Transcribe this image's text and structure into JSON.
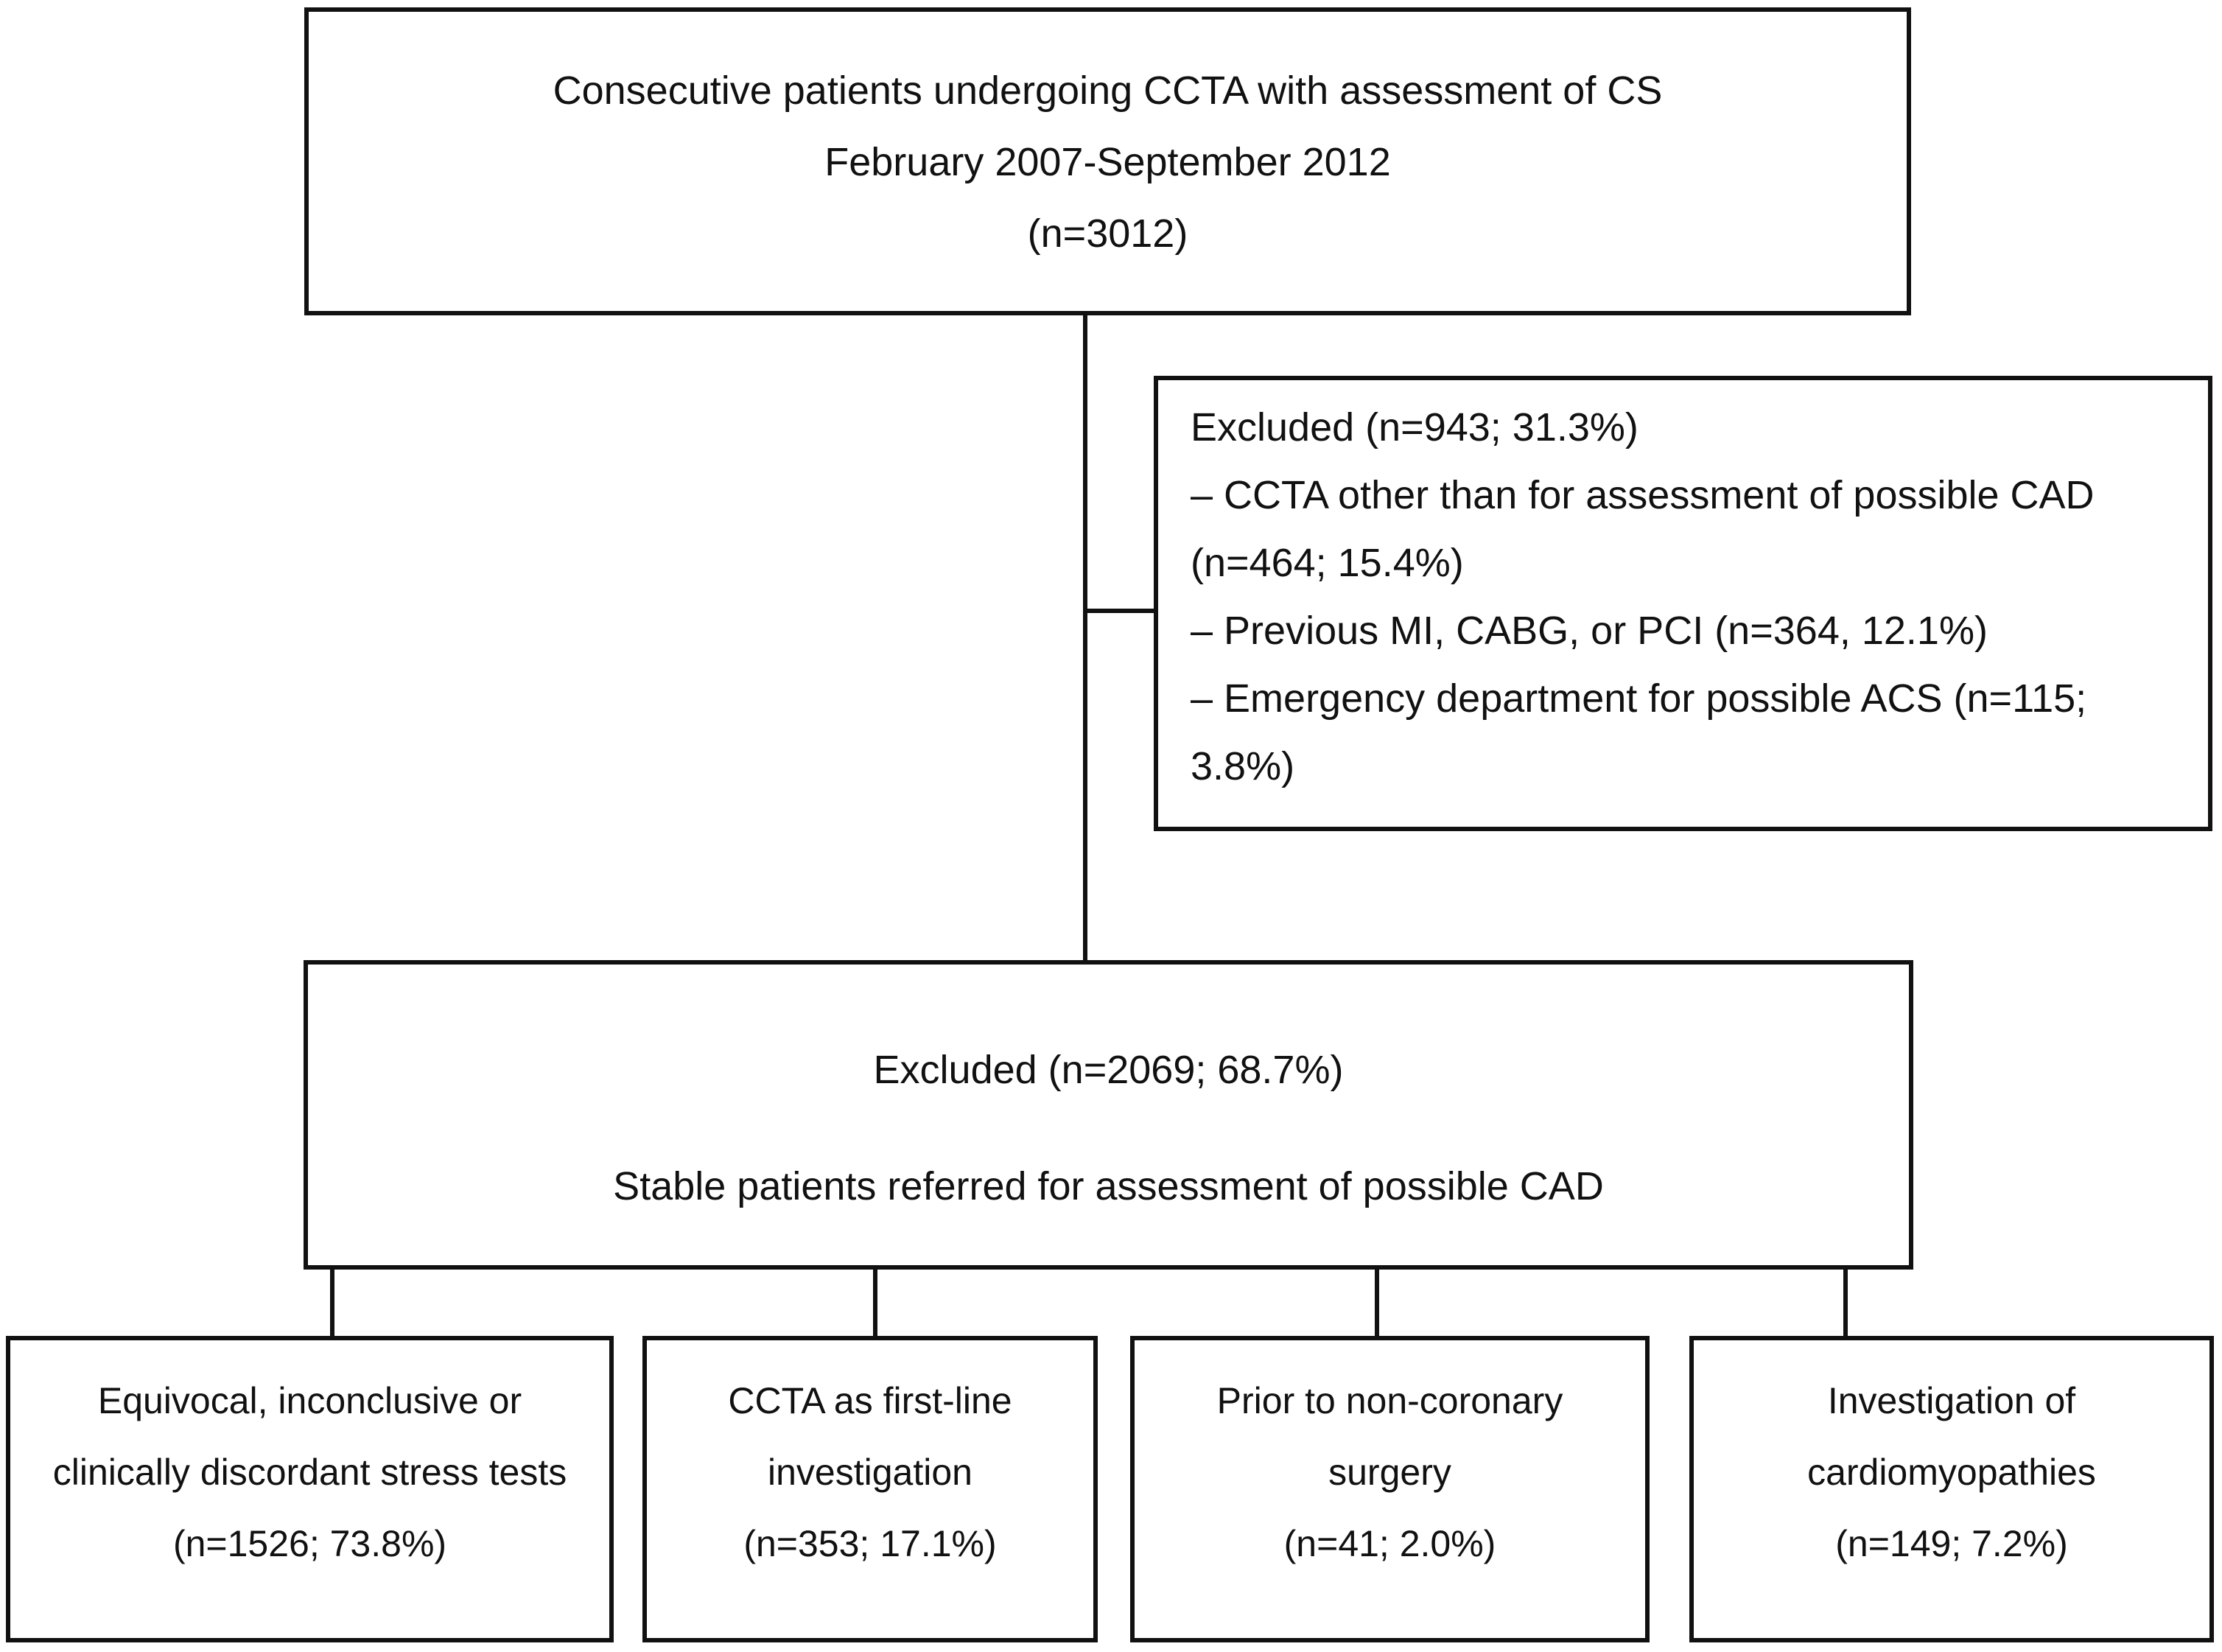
{
  "figure": {
    "type": "patient-flow-diagram",
    "background_color": "#ffffff",
    "line_color": "#111111",
    "enrollment": {
      "lines": [
        "Consecutive patients undergoing CCTA with assessment of CS",
        "February 2007-September 2012",
        "(n=3012)"
      ]
    },
    "excluded_side": {
      "lines": [
        "Excluded (n=943; 31.3%)",
        "– CCTA other than for assessment of possible CAD",
        "(n=464; 15.4%)",
        "– Previous MI, CABG, or PCI (n=364, 12.1%)",
        "– Emergency department for possible ACS (n=115;",
        "3.8%)"
      ]
    },
    "included": {
      "lines": [
        "Excluded (n=2069; 68.7%)",
        "Stable patients referred for assessment of possible CAD"
      ]
    },
    "bottom": [
      {
        "lines": [
          "Equivocal, inconclusive or",
          "clinically discordant stress tests",
          "(n=1526; 73.8%)"
        ]
      },
      {
        "lines": [
          "CCTA as first-line",
          "investigation",
          "(n=353; 17.1%)"
        ]
      },
      {
        "lines": [
          "Prior to non-coronary",
          "surgery",
          "(n=41; 2.0%)"
        ]
      },
      {
        "lines": [
          "Investigation of",
          "cardiomyopathies",
          "(n=149; 7.2%)"
        ]
      }
    ]
  }
}
